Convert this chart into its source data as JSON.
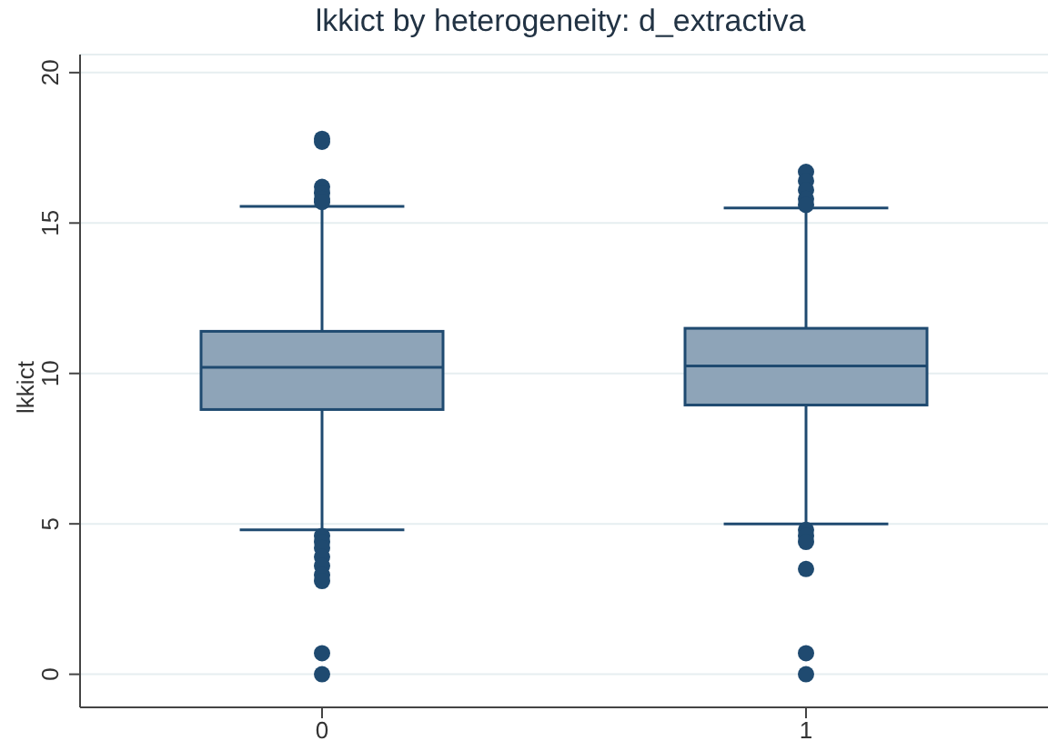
{
  "chart_data": {
    "type": "box",
    "title": "lkkict by heterogeneity: d_extractiva",
    "ylabel": "lkkict",
    "categories": [
      "0",
      "1"
    ],
    "boxes": [
      {
        "low": 4.8,
        "q1": 8.8,
        "median": 10.2,
        "q3": 11.4,
        "high": 15.55,
        "outliers": [
          17.8,
          17.7,
          16.2,
          16.0,
          15.8,
          15.7,
          4.6,
          4.4,
          4.2,
          3.9,
          3.6,
          3.3,
          3.1,
          0.7,
          0.0
        ]
      },
      {
        "low": 5.0,
        "q1": 8.95,
        "median": 10.25,
        "q3": 11.5,
        "high": 15.5,
        "outliers": [
          16.7,
          16.4,
          16.1,
          15.8,
          15.6,
          4.8,
          4.6,
          4.4,
          3.5,
          0.7,
          0.0
        ]
      }
    ],
    "color": "#8ea4b8",
    "ylim": [
      -1.1,
      20.6
    ],
    "yticks": [
      0,
      5,
      10,
      15,
      20
    ],
    "grid": "y"
  }
}
